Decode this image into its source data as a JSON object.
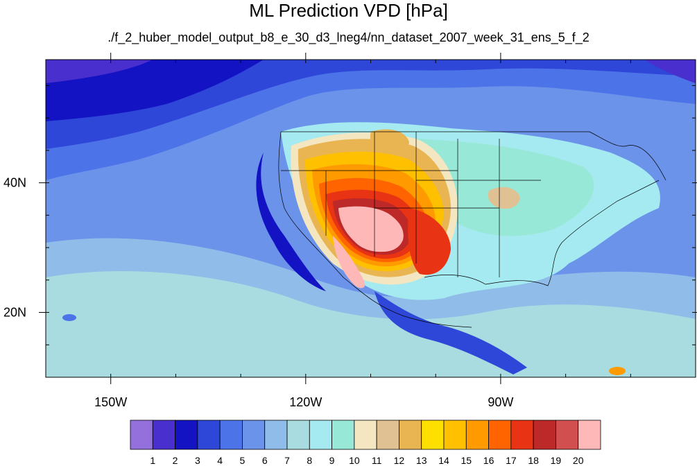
{
  "title": "ML Prediction VPD [hPa]",
  "subtitle": "./f_2_huber_model_output_b8_e_30_d3_lneg4/nn_dataset_2007_week_31_ens_5_f_2",
  "map": {
    "projection": "cylindrical equidistant",
    "lon_range": [
      -160,
      -60
    ],
    "lat_range": [
      10,
      59
    ],
    "lon_ticks": [
      {
        "value": -150,
        "label": "150W"
      },
      {
        "value": -120,
        "label": "120W"
      },
      {
        "value": -90,
        "label": "90W"
      }
    ],
    "lat_ticks": [
      {
        "value": 40,
        "label": "40N"
      },
      {
        "value": 20,
        "label": "20N"
      }
    ]
  },
  "colorbar": {
    "labels": [
      "1",
      "2",
      "3",
      "4",
      "5",
      "6",
      "7",
      "8",
      "9",
      "10",
      "11",
      "12",
      "13",
      "14",
      "15",
      "16",
      "17",
      "18",
      "19",
      "20"
    ],
    "colors": [
      "#9370db",
      "#4a2fcf",
      "#1313c4",
      "#2f47d9",
      "#4d73e8",
      "#6c93ea",
      "#8fbce8",
      "#a8dce0",
      "#a5eaf0",
      "#98e8d8",
      "#f3e6c0",
      "#dfc194",
      "#e8b552",
      "#fde000",
      "#ffc000",
      "#ff9a00",
      "#ff6400",
      "#e83314",
      "#bd2828",
      "#d24f4f",
      "#ffb8b8"
    ]
  }
}
